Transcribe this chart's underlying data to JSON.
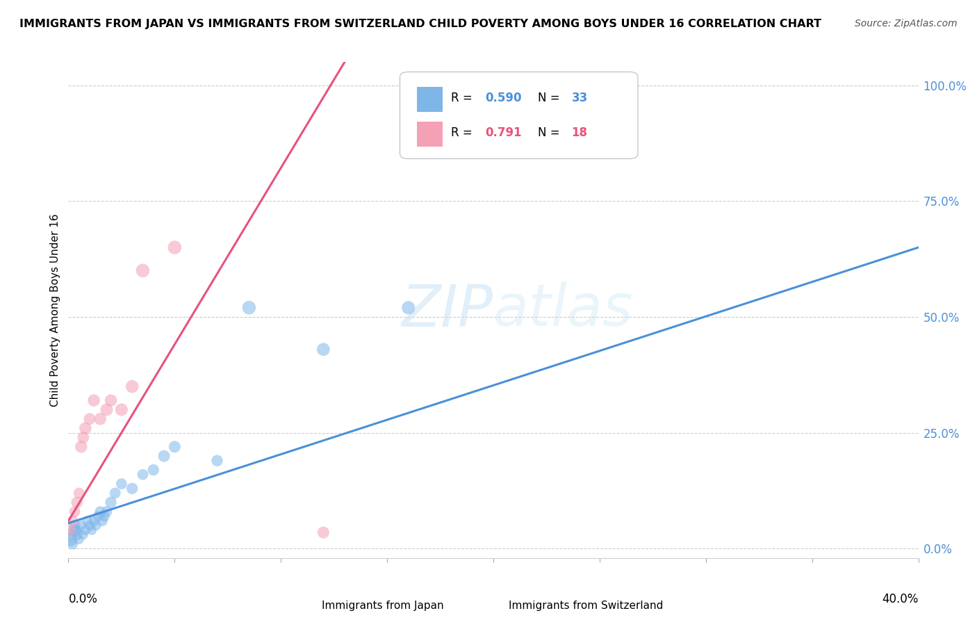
{
  "title": "IMMIGRANTS FROM JAPAN VS IMMIGRANTS FROM SWITZERLAND CHILD POVERTY AMONG BOYS UNDER 16 CORRELATION CHART",
  "source": "Source: ZipAtlas.com",
  "ylabel": "Child Poverty Among Boys Under 16",
  "ytick_labels": [
    "0.0%",
    "25.0%",
    "50.0%",
    "75.0%",
    "100.0%"
  ],
  "ytick_values": [
    0.0,
    0.25,
    0.5,
    0.75,
    1.0
  ],
  "xlim": [
    0.0,
    0.4
  ],
  "ylim": [
    -0.02,
    1.05
  ],
  "legend_r_japan": "0.590",
  "legend_n_japan": "33",
  "legend_r_swiss": "0.791",
  "legend_n_swiss": "18",
  "japan_color": "#7EB6E8",
  "swiss_color": "#F4A0B5",
  "japan_line_color": "#4A90D9",
  "swiss_line_color": "#E8527A",
  "japan_line_x0": 0.0,
  "japan_line_y0": 0.055,
  "japan_line_x1": 0.4,
  "japan_line_y1": 0.65,
  "swiss_line_x0": 0.0,
  "swiss_line_y0": 0.06,
  "swiss_line_x1": 0.13,
  "swiss_line_y1": 1.05,
  "japan_scatter_x": [
    0.001,
    0.001,
    0.002,
    0.003,
    0.003,
    0.004,
    0.004,
    0.005,
    0.006,
    0.007,
    0.008,
    0.009,
    0.01,
    0.011,
    0.012,
    0.013,
    0.014,
    0.015,
    0.016,
    0.017,
    0.018,
    0.02,
    0.022,
    0.025,
    0.03,
    0.035,
    0.04,
    0.045,
    0.05,
    0.07,
    0.085,
    0.12,
    0.16
  ],
  "japan_scatter_y": [
    0.02,
    0.03,
    0.01,
    0.04,
    0.05,
    0.03,
    0.04,
    0.02,
    0.05,
    0.03,
    0.04,
    0.06,
    0.05,
    0.04,
    0.06,
    0.05,
    0.07,
    0.08,
    0.06,
    0.07,
    0.08,
    0.1,
    0.12,
    0.14,
    0.13,
    0.16,
    0.17,
    0.2,
    0.22,
    0.19,
    0.52,
    0.43,
    0.52
  ],
  "japan_scatter_s": [
    200,
    150,
    120,
    160,
    140,
    130,
    110,
    100,
    110,
    100,
    110,
    120,
    110,
    100,
    120,
    110,
    120,
    130,
    120,
    120,
    130,
    140,
    130,
    130,
    140,
    130,
    140,
    150,
    150,
    140,
    200,
    180,
    190
  ],
  "swiss_scatter_x": [
    0.001,
    0.002,
    0.003,
    0.004,
    0.005,
    0.006,
    0.007,
    0.008,
    0.01,
    0.012,
    0.015,
    0.018,
    0.02,
    0.025,
    0.03,
    0.035,
    0.05,
    0.12
  ],
  "swiss_scatter_y": [
    0.04,
    0.06,
    0.08,
    0.1,
    0.12,
    0.22,
    0.24,
    0.26,
    0.28,
    0.32,
    0.28,
    0.3,
    0.32,
    0.3,
    0.35,
    0.6,
    0.65,
    0.035
  ],
  "swiss_scatter_s": [
    120,
    130,
    130,
    140,
    130,
    160,
    150,
    160,
    150,
    160,
    160,
    170,
    160,
    170,
    180,
    200,
    200,
    150
  ]
}
